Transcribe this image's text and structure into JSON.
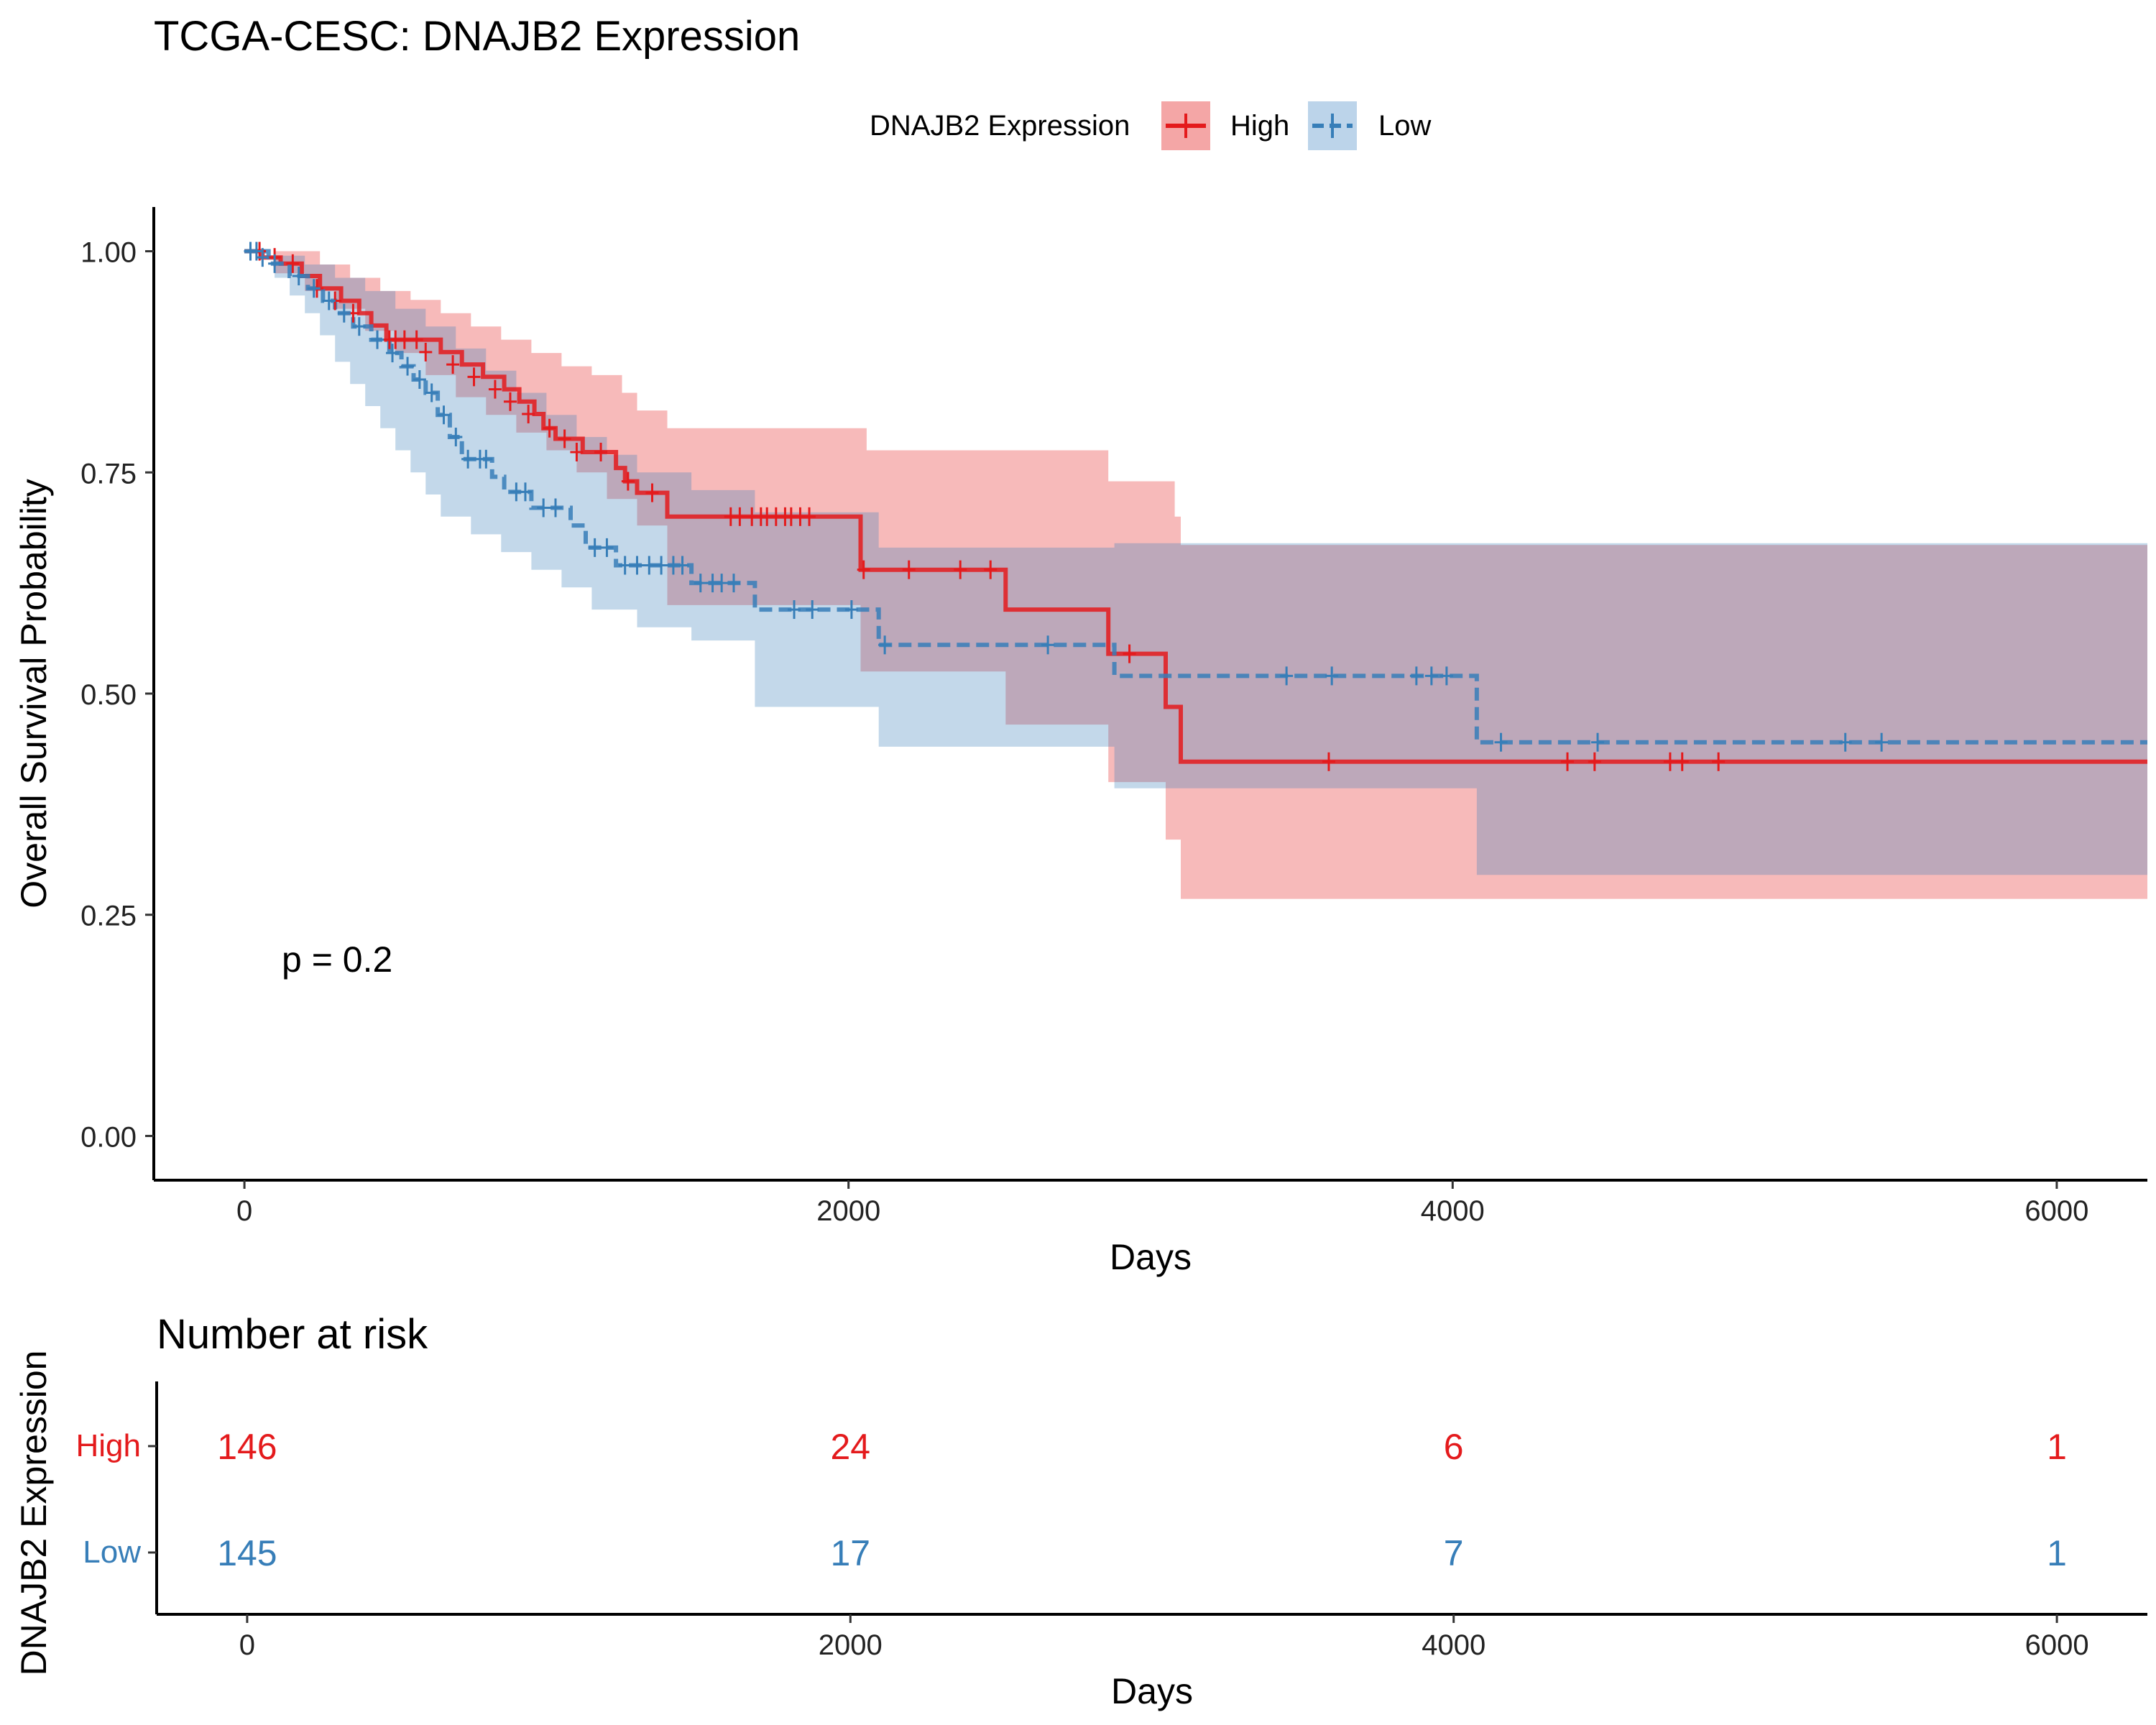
{
  "title": "TCGA-CESC: DNAJB2 Expression",
  "legend": {
    "title": "DNAJB2 Expression",
    "items": [
      {
        "label": "High",
        "color": "#E41A1C",
        "line": "solid"
      },
      {
        "label": "Low",
        "color": "#377EB8",
        "line": "dashed"
      }
    ]
  },
  "pvalue_label": "p = 0.2",
  "chart_data": [
    {
      "type": "line",
      "subtype": "kaplan-meier",
      "xlabel": "Days",
      "ylabel": "Overall Survival Probability",
      "xlim": [
        -300,
        6300
      ],
      "ylim": [
        -0.05,
        1.05
      ],
      "xticks": [
        0,
        2000,
        4000,
        6000
      ],
      "xtick_labels": [
        "0",
        "2000",
        "4000",
        "6000"
      ],
      "yticks": [
        0,
        0.25,
        0.5,
        0.75,
        1.0
      ],
      "ytick_labels": [
        "0.00",
        "0.25",
        "0.50",
        "0.75",
        "1.00"
      ],
      "grid": false,
      "series": [
        {
          "name": "High",
          "color": "#E41A1C",
          "dash": "solid",
          "steps": [
            [
              0,
              1.0
            ],
            [
              60,
              0.993
            ],
            [
              120,
              0.986
            ],
            [
              190,
              0.972
            ],
            [
              250,
              0.958
            ],
            [
              320,
              0.944
            ],
            [
              380,
              0.93
            ],
            [
              420,
              0.916
            ],
            [
              470,
              0.9
            ],
            [
              560,
              0.9
            ],
            [
              650,
              0.886
            ],
            [
              720,
              0.872
            ],
            [
              790,
              0.858
            ],
            [
              860,
              0.844
            ],
            [
              910,
              0.83
            ],
            [
              960,
              0.816
            ],
            [
              990,
              0.8
            ],
            [
              1030,
              0.788
            ],
            [
              1120,
              0.773
            ],
            [
              1230,
              0.755
            ],
            [
              1260,
              0.74
            ],
            [
              1300,
              0.727
            ],
            [
              1400,
              0.7
            ],
            [
              2040,
              0.64
            ],
            [
              2520,
              0.595
            ],
            [
              2860,
              0.545
            ],
            [
              3050,
              0.485
            ],
            [
              3100,
              0.423
            ],
            [
              6300,
              0.423
            ]
          ],
          "ci_upper": [
            [
              0,
              1.0
            ],
            [
              100,
              1.0
            ],
            [
              250,
              0.985
            ],
            [
              350,
              0.97
            ],
            [
              450,
              0.955
            ],
            [
              550,
              0.945
            ],
            [
              650,
              0.93
            ],
            [
              750,
              0.915
            ],
            [
              850,
              0.9
            ],
            [
              950,
              0.885
            ],
            [
              1050,
              0.87
            ],
            [
              1150,
              0.86
            ],
            [
              1250,
              0.84
            ],
            [
              1300,
              0.82
            ],
            [
              1400,
              0.8
            ],
            [
              2060,
              0.775
            ],
            [
              2860,
              0.74
            ],
            [
              3080,
              0.7
            ],
            [
              3100,
              0.668
            ],
            [
              6300,
              0.668
            ]
          ],
          "ci_lower": [
            [
              0,
              1.0
            ],
            [
              100,
              0.975
            ],
            [
              200,
              0.955
            ],
            [
              300,
              0.935
            ],
            [
              400,
              0.91
            ],
            [
              500,
              0.885
            ],
            [
              600,
              0.86
            ],
            [
              700,
              0.835
            ],
            [
              800,
              0.815
            ],
            [
              900,
              0.795
            ],
            [
              1000,
              0.775
            ],
            [
              1100,
              0.75
            ],
            [
              1200,
              0.72
            ],
            [
              1300,
              0.69
            ],
            [
              1400,
              0.6
            ],
            [
              2040,
              0.525
            ],
            [
              2520,
              0.465
            ],
            [
              2860,
              0.4
            ],
            [
              3050,
              0.335
            ],
            [
              3100,
              0.268
            ],
            [
              6300,
              0.268
            ]
          ],
          "censored": [
            [
              50,
              1.0
            ],
            [
              100,
              0.993
            ],
            [
              160,
              0.986
            ],
            [
              240,
              0.958
            ],
            [
              300,
              0.944
            ],
            [
              360,
              0.93
            ],
            [
              480,
              0.9
            ],
            [
              500,
              0.9
            ],
            [
              530,
              0.9
            ],
            [
              570,
              0.9
            ],
            [
              600,
              0.886
            ],
            [
              690,
              0.872
            ],
            [
              760,
              0.858
            ],
            [
              830,
              0.844
            ],
            [
              880,
              0.83
            ],
            [
              940,
              0.816
            ],
            [
              1010,
              0.8
            ],
            [
              1060,
              0.788
            ],
            [
              1100,
              0.773
            ],
            [
              1180,
              0.773
            ],
            [
              1270,
              0.74
            ],
            [
              1350,
              0.727
            ],
            [
              1610,
              0.7
            ],
            [
              1640,
              0.7
            ],
            [
              1680,
              0.7
            ],
            [
              1710,
              0.7
            ],
            [
              1730,
              0.7
            ],
            [
              1760,
              0.7
            ],
            [
              1790,
              0.7
            ],
            [
              1810,
              0.7
            ],
            [
              1840,
              0.7
            ],
            [
              1870,
              0.7
            ],
            [
              2050,
              0.64
            ],
            [
              2200,
              0.64
            ],
            [
              2370,
              0.64
            ],
            [
              2470,
              0.64
            ],
            [
              2930,
              0.545
            ],
            [
              3590,
              0.423
            ],
            [
              4380,
              0.423
            ],
            [
              4470,
              0.423
            ],
            [
              4720,
              0.423
            ],
            [
              4760,
              0.423
            ],
            [
              4880,
              0.423
            ]
          ]
        },
        {
          "name": "Low",
          "color": "#377EB8",
          "dash": "dashed",
          "steps": [
            [
              0,
              1.0
            ],
            [
              80,
              0.986
            ],
            [
              150,
              0.972
            ],
            [
              210,
              0.958
            ],
            [
              260,
              0.944
            ],
            [
              300,
              0.93
            ],
            [
              360,
              0.915
            ],
            [
              420,
              0.9
            ],
            [
              480,
              0.885
            ],
            [
              520,
              0.87
            ],
            [
              560,
              0.855
            ],
            [
              600,
              0.84
            ],
            [
              640,
              0.815
            ],
            [
              680,
              0.79
            ],
            [
              720,
              0.765
            ],
            [
              820,
              0.745
            ],
            [
              860,
              0.728
            ],
            [
              950,
              0.71
            ],
            [
              1080,
              0.69
            ],
            [
              1130,
              0.665
            ],
            [
              1230,
              0.645
            ],
            [
              1480,
              0.625
            ],
            [
              1690,
              0.595
            ],
            [
              2100,
              0.555
            ],
            [
              2880,
              0.52
            ],
            [
              4080,
              0.445
            ],
            [
              6300,
              0.445
            ]
          ],
          "ci_upper": [
            [
              0,
              1.0
            ],
            [
              100,
              0.995
            ],
            [
              200,
              0.985
            ],
            [
              300,
              0.97
            ],
            [
              400,
              0.955
            ],
            [
              500,
              0.935
            ],
            [
              600,
              0.915
            ],
            [
              700,
              0.89
            ],
            [
              800,
              0.865
            ],
            [
              900,
              0.84
            ],
            [
              1000,
              0.815
            ],
            [
              1100,
              0.79
            ],
            [
              1200,
              0.77
            ],
            [
              1300,
              0.75
            ],
            [
              1480,
              0.73
            ],
            [
              1690,
              0.705
            ],
            [
              2100,
              0.665
            ],
            [
              2880,
              0.67
            ],
            [
              4080,
              0.67
            ],
            [
              6300,
              0.67
            ]
          ],
          "ci_lower": [
            [
              0,
              1.0
            ],
            [
              100,
              0.97
            ],
            [
              150,
              0.95
            ],
            [
              200,
              0.93
            ],
            [
              250,
              0.905
            ],
            [
              300,
              0.875
            ],
            [
              350,
              0.85
            ],
            [
              400,
              0.825
            ],
            [
              450,
              0.8
            ],
            [
              500,
              0.775
            ],
            [
              550,
              0.75
            ],
            [
              600,
              0.725
            ],
            [
              650,
              0.7
            ],
            [
              750,
              0.68
            ],
            [
              850,
              0.66
            ],
            [
              950,
              0.64
            ],
            [
              1050,
              0.62
            ],
            [
              1150,
              0.595
            ],
            [
              1300,
              0.575
            ],
            [
              1480,
              0.56
            ],
            [
              1690,
              0.485
            ],
            [
              2100,
              0.44
            ],
            [
              2880,
              0.393
            ],
            [
              4080,
              0.295
            ],
            [
              6300,
              0.295
            ]
          ],
          "censored": [
            [
              20,
              1.0
            ],
            [
              40,
              1.0
            ],
            [
              60,
              0.993
            ],
            [
              100,
              0.986
            ],
            [
              180,
              0.972
            ],
            [
              230,
              0.958
            ],
            [
              280,
              0.944
            ],
            [
              330,
              0.93
            ],
            [
              380,
              0.915
            ],
            [
              440,
              0.9
            ],
            [
              490,
              0.885
            ],
            [
              540,
              0.87
            ],
            [
              580,
              0.855
            ],
            [
              620,
              0.84
            ],
            [
              660,
              0.815
            ],
            [
              700,
              0.79
            ],
            [
              740,
              0.765
            ],
            [
              780,
              0.765
            ],
            [
              800,
              0.765
            ],
            [
              900,
              0.728
            ],
            [
              930,
              0.728
            ],
            [
              990,
              0.71
            ],
            [
              1030,
              0.71
            ],
            [
              1160,
              0.665
            ],
            [
              1200,
              0.665
            ],
            [
              1260,
              0.645
            ],
            [
              1300,
              0.645
            ],
            [
              1340,
              0.645
            ],
            [
              1380,
              0.645
            ],
            [
              1420,
              0.645
            ],
            [
              1450,
              0.645
            ],
            [
              1510,
              0.625
            ],
            [
              1550,
              0.625
            ],
            [
              1580,
              0.625
            ],
            [
              1620,
              0.625
            ],
            [
              1820,
              0.595
            ],
            [
              1880,
              0.595
            ],
            [
              2010,
              0.595
            ],
            [
              2120,
              0.555
            ],
            [
              2660,
              0.555
            ],
            [
              3450,
              0.52
            ],
            [
              3600,
              0.52
            ],
            [
              3880,
              0.52
            ],
            [
              3930,
              0.52
            ],
            [
              3980,
              0.52
            ],
            [
              4160,
              0.445
            ],
            [
              4480,
              0.445
            ],
            [
              5300,
              0.445
            ],
            [
              5420,
              0.445
            ]
          ]
        }
      ]
    },
    {
      "type": "table",
      "title": "Number at risk",
      "xlabel": "Days",
      "ylabel": "DNAJB2 Expression",
      "xlim": [
        -300,
        6300
      ],
      "xticks": [
        0,
        2000,
        4000,
        6000
      ],
      "xtick_labels": [
        "0",
        "2000",
        "4000",
        "6000"
      ],
      "rows": [
        {
          "name": "High",
          "color": "#E41A1C",
          "values": [
            "146",
            "24",
            "6",
            "1"
          ]
        },
        {
          "name": "Low",
          "color": "#377EB8",
          "values": [
            "145",
            "17",
            "7",
            "1"
          ]
        }
      ]
    }
  ]
}
